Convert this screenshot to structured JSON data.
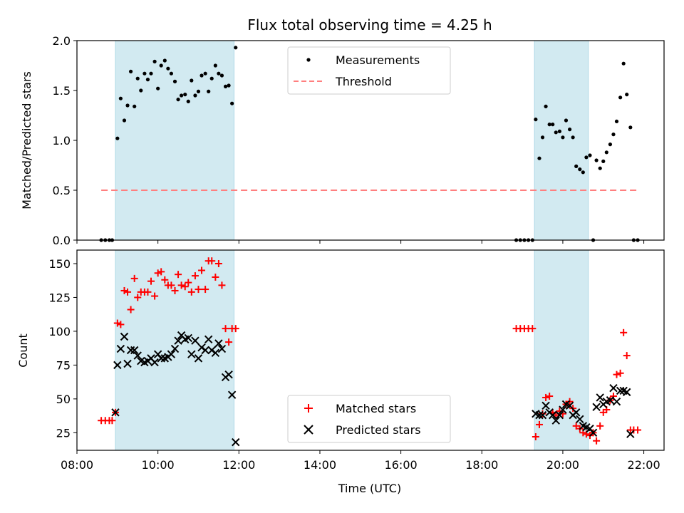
{
  "chart_data": {
    "title": "Flux total observing time = 4.25 h",
    "xlabel": "Time (UTC)",
    "x_unit": "hours UTC",
    "xlim": [
      8.0,
      22.5
    ],
    "xticks": [
      8,
      10,
      12,
      14,
      16,
      18,
      20,
      22
    ],
    "xtick_labels": [
      "08:00",
      "10:00",
      "12:00",
      "14:00",
      "16:00",
      "18:00",
      "20:00",
      "22:00"
    ],
    "shaded_intervals": [
      [
        8.95,
        11.88
      ],
      [
        19.3,
        20.63
      ]
    ],
    "shade_color": "#add8e6",
    "panels": [
      {
        "type": "scatter",
        "ylabel": "Matched/Predicted stars",
        "ylim": [
          0.0,
          2.0
        ],
        "yticks": [
          0.0,
          0.5,
          1.0,
          1.5,
          2.0
        ],
        "ytick_labels": [
          "0.0",
          "0.5",
          "1.0",
          "1.5",
          "2.0"
        ],
        "legend_position": "top-center",
        "series": [
          {
            "name": "Measurements",
            "marker": "dot",
            "color": "#000000",
            "x": [
              8.6,
              8.7,
              8.8,
              8.87,
              9.0,
              9.08,
              9.17,
              9.25,
              9.33,
              9.42,
              9.5,
              9.58,
              9.67,
              9.75,
              9.83,
              9.92,
              10.0,
              10.08,
              10.17,
              10.25,
              10.33,
              10.42,
              10.5,
              10.58,
              10.67,
              10.75,
              10.83,
              10.92,
              11.0,
              11.08,
              11.17,
              11.25,
              11.33,
              11.42,
              11.5,
              11.58,
              11.67,
              11.75,
              11.83,
              11.92,
              18.85,
              18.95,
              19.05,
              19.15,
              19.25,
              19.33,
              19.42,
              19.5,
              19.58,
              19.67,
              19.75,
              19.83,
              19.92,
              20.0,
              20.08,
              20.17,
              20.25,
              20.33,
              20.42,
              20.5,
              20.58,
              20.67,
              20.75,
              20.83,
              20.92,
              21.0,
              21.08,
              21.17,
              21.25,
              21.33,
              21.42,
              21.5,
              21.58,
              21.67,
              21.75,
              21.85
            ],
            "y": [
              0.0,
              0.0,
              0.0,
              0.0,
              1.02,
              1.42,
              1.2,
              1.35,
              1.69,
              1.34,
              1.62,
              1.5,
              1.67,
              1.61,
              1.67,
              1.79,
              1.52,
              1.75,
              1.8,
              1.72,
              1.67,
              1.59,
              1.41,
              1.45,
              1.46,
              1.39,
              1.6,
              1.45,
              1.49,
              1.65,
              1.67,
              1.49,
              1.62,
              1.75,
              1.67,
              1.65,
              1.54,
              1.55,
              1.37,
              1.93,
              0.0,
              0.0,
              0.0,
              0.0,
              0.0,
              1.21,
              0.82,
              1.03,
              1.34,
              1.16,
              1.16,
              1.08,
              1.09,
              1.03,
              1.2,
              1.11,
              1.03,
              0.74,
              0.71,
              0.68,
              0.83,
              0.85,
              0.0,
              0.8,
              0.72,
              0.79,
              0.88,
              0.96,
              1.06,
              1.19,
              1.43,
              1.77,
              1.46,
              1.13,
              0.0,
              0.0
            ]
          },
          {
            "name": "Threshold",
            "type": "line",
            "style": "dashed",
            "color": "#ff7f7f",
            "x": [
              8.6,
              21.85
            ],
            "y": [
              0.5,
              0.5
            ]
          }
        ]
      },
      {
        "type": "scatter",
        "ylabel": "Count",
        "ylim": [
          12,
          160
        ],
        "yticks": [
          25,
          50,
          75,
          100,
          125,
          150
        ],
        "ytick_labels": [
          "25",
          "50",
          "75",
          "100",
          "125",
          "150"
        ],
        "legend_position": "bottom-center",
        "series": [
          {
            "name": "Matched stars",
            "marker": "plus",
            "color": "#ff0000",
            "x": [
              8.6,
              8.7,
              8.8,
              8.87,
              8.95,
              9.0,
              9.08,
              9.17,
              9.25,
              9.33,
              9.42,
              9.5,
              9.58,
              9.67,
              9.75,
              9.83,
              9.92,
              10.0,
              10.08,
              10.17,
              10.25,
              10.33,
              10.42,
              10.5,
              10.58,
              10.67,
              10.75,
              10.83,
              10.92,
              11.0,
              11.08,
              11.17,
              11.25,
              11.33,
              11.42,
              11.5,
              11.58,
              11.67,
              11.75,
              11.83,
              11.92,
              18.85,
              18.95,
              19.05,
              19.15,
              19.25,
              19.33,
              19.42,
              19.5,
              19.58,
              19.67,
              19.75,
              19.83,
              19.92,
              20.0,
              20.08,
              20.17,
              20.25,
              20.33,
              20.42,
              20.5,
              20.58,
              20.67,
              20.75,
              20.83,
              20.92,
              21.0,
              21.08,
              21.17,
              21.25,
              21.33,
              21.42,
              21.5,
              21.58,
              21.67,
              21.75,
              21.85
            ],
            "y": [
              34,
              34,
              34,
              34,
              40,
              106,
              105,
              130,
              129,
              116,
              139,
              125,
              129,
              129,
              129,
              137,
              126,
              143,
              144,
              138,
              134,
              134,
              130,
              142,
              134,
              133,
              136,
              129,
              141,
              131,
              145,
              131,
              152,
              152,
              140,
              150,
              134,
              102,
              92,
              102,
              102,
              102,
              102,
              102,
              102,
              102,
              22,
              31,
              39,
              51,
              52,
              40,
              38,
              41,
              39,
              46,
              48,
              43,
              30,
              28,
              25,
              24,
              23,
              25,
              19,
              30,
              40,
              42,
              49,
              52,
              68,
              69,
              99,
              82,
              27,
              27,
              27
            ]
          },
          {
            "name": "Predicted stars",
            "marker": "x",
            "color": "#000000",
            "x": [
              8.95,
              9.0,
              9.08,
              9.17,
              9.25,
              9.33,
              9.42,
              9.5,
              9.58,
              9.67,
              9.75,
              9.83,
              9.92,
              10.0,
              10.08,
              10.17,
              10.25,
              10.33,
              10.42,
              10.5,
              10.58,
              10.67,
              10.75,
              10.83,
              10.92,
              11.0,
              11.08,
              11.17,
              11.25,
              11.33,
              11.42,
              11.5,
              11.58,
              11.67,
              11.75,
              11.83,
              11.92,
              19.33,
              19.42,
              19.5,
              19.58,
              19.67,
              19.75,
              19.83,
              19.92,
              20.0,
              20.08,
              20.17,
              20.25,
              20.33,
              20.42,
              20.5,
              20.58,
              20.67,
              20.75,
              20.83,
              20.92,
              21.0,
              21.08,
              21.17,
              21.25,
              21.33,
              21.42,
              21.5,
              21.58,
              21.67
            ],
            "y": [
              40,
              75,
              87,
              96,
              76,
              86,
              86,
              82,
              78,
              77,
              78,
              80,
              77,
              83,
              80,
              80,
              81,
              83,
              87,
              93,
              97,
              94,
              95,
              83,
              93,
              80,
              88,
              86,
              94,
              86,
              84,
              91,
              87,
              66,
              68,
              53,
              18,
              39,
              38,
              38,
              45,
              40,
              38,
              34,
              38,
              42,
              46,
              45,
              38,
              40,
              35,
              30,
              29,
              28,
              25,
              44,
              51,
              46,
              48,
              49,
              58,
              48,
              56,
              56,
              55,
              24
            ]
          }
        ]
      }
    ]
  }
}
